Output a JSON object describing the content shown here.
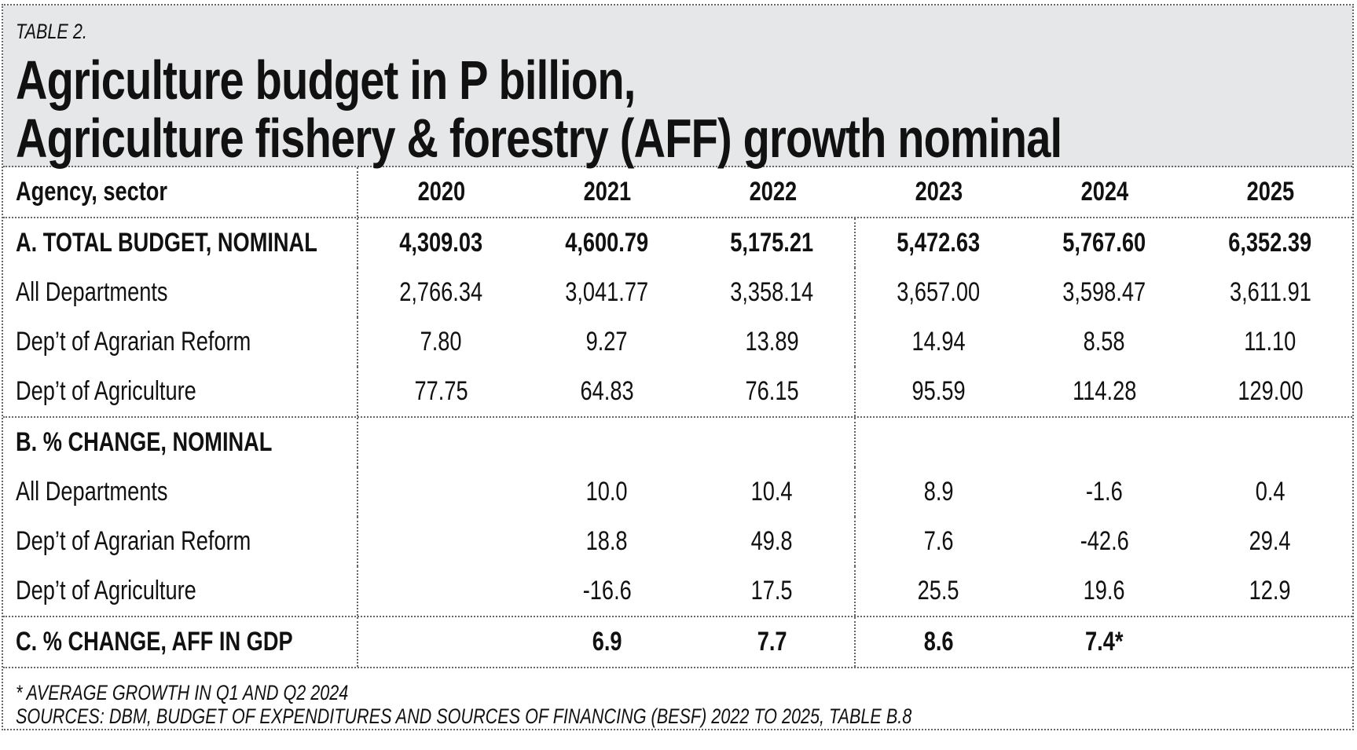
{
  "table_label": "TABLE 2.",
  "title_line1": "Agriculture budget in P billion,",
  "title_line2": "Agriculture fishery & forestry (AFF) growth nominal",
  "header": {
    "label": "Agency, sector",
    "years": [
      "2020",
      "2021",
      "2022",
      "2023",
      "2024",
      "2025"
    ]
  },
  "rows": [
    {
      "label": "A. TOTAL BUDGET, NOMINAL",
      "bold": true,
      "values": [
        "4,309.03",
        "4,600.79",
        "5,175.21",
        "5,472.63",
        "5,767.60",
        "6,352.39"
      ]
    },
    {
      "label": "All Departments",
      "values": [
        "2,766.34",
        "3,041.77",
        "3,358.14",
        "3,657.00",
        "3,598.47",
        "3,611.91"
      ]
    },
    {
      "label": "Dep’t of Agrarian Reform",
      "values": [
        "7.80",
        "9.27",
        "13.89",
        "14.94",
        "8.58",
        "11.10"
      ]
    },
    {
      "label": "Dep’t of Agriculture",
      "values": [
        "77.75",
        "64.83",
        "76.15",
        "95.59",
        "114.28",
        "129.00"
      ]
    },
    {
      "label": "B. % CHANGE, NOMINAL",
      "bold": true,
      "values": [
        "",
        "",
        "",
        "",
        "",
        ""
      ]
    },
    {
      "label": "All Departments",
      "values": [
        "",
        "10.0",
        "10.4",
        "8.9",
        "-1.6",
        "0.4"
      ]
    },
    {
      "label": "Dep’t of Agrarian Reform",
      "values": [
        "",
        "18.8",
        "49.8",
        "7.6",
        "-42.6",
        "29.4"
      ]
    },
    {
      "label": "Dep’t of Agriculture",
      "values": [
        "",
        "-16.6",
        "17.5",
        "25.5",
        "19.6",
        "12.9"
      ]
    },
    {
      "label": "C. % CHANGE, AFF IN GDP",
      "bold": true,
      "values": [
        "",
        "6.9",
        "7.7",
        "8.6",
        "7.4*",
        ""
      ]
    }
  ],
  "footnote": "* AVERAGE GROWTH IN Q1 AND Q2 2024",
  "sources": "SOURCES: DBM, BUDGET OF EXPENDITURES AND SOURCES OF FINANCING (BESF) 2022 TO 2025, TABLE B.8"
}
